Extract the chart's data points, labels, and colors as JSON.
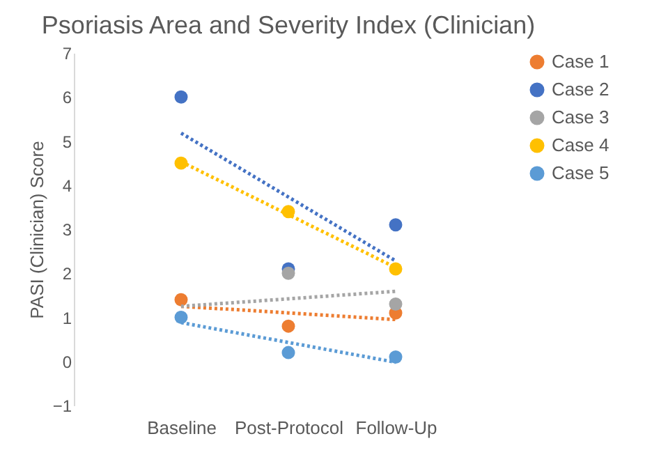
{
  "chart_data": {
    "type": "scatter",
    "title": "Psoriasis Area and Severity Index (Clinician)",
    "ylabel": "PASI (Clinician) Score",
    "categories": [
      "Baseline",
      "Post-Protocol",
      "Follow-Up"
    ],
    "ylim": [
      -1,
      7
    ],
    "yticks": [
      -1,
      0,
      1,
      2,
      3,
      4,
      5,
      6,
      7
    ],
    "grid": false,
    "legend": "right",
    "series": [
      {
        "name": "Case 1",
        "color": "#ed7d31",
        "marker": "circle",
        "values": [
          1.4,
          0.8,
          1.1
        ]
      },
      {
        "name": "Case 2",
        "color": "#4472c4",
        "marker": "circle",
        "values": [
          6.0,
          2.1,
          3.1
        ]
      },
      {
        "name": "Case 3",
        "color": "#a5a5a5",
        "marker": "circle",
        "values": [
          null,
          2.0,
          1.3
        ]
      },
      {
        "name": "Case 4",
        "color": "#ffc000",
        "marker": "circle",
        "values": [
          4.5,
          3.4,
          2.1
        ]
      },
      {
        "name": "Case 5",
        "color": "#5b9bd5",
        "marker": "circle",
        "values": [
          1.0,
          0.2,
          0.1
        ]
      },
      {
        "type": "line",
        "line_style": "dotted",
        "marker": "none",
        "color": "#ed7d31",
        "values": [
          1.25,
          1.1,
          0.95
        ]
      },
      {
        "type": "line",
        "line_style": "dotted",
        "marker": "none",
        "color": "#4472c4",
        "values": [
          5.18,
          3.73,
          2.28
        ]
      },
      {
        "type": "line",
        "line_style": "dotted",
        "marker": "none",
        "color": "#a5a5a5",
        "values": [
          1.25,
          1.42,
          1.59
        ]
      },
      {
        "type": "line",
        "line_style": "dotted",
        "marker": "none",
        "color": "#ffc000",
        "values": [
          4.53,
          3.33,
          2.13
        ]
      },
      {
        "type": "line",
        "line_style": "dotted",
        "marker": "none",
        "color": "#5b9bd5",
        "values": [
          0.88,
          0.43,
          -0.02
        ]
      }
    ]
  }
}
